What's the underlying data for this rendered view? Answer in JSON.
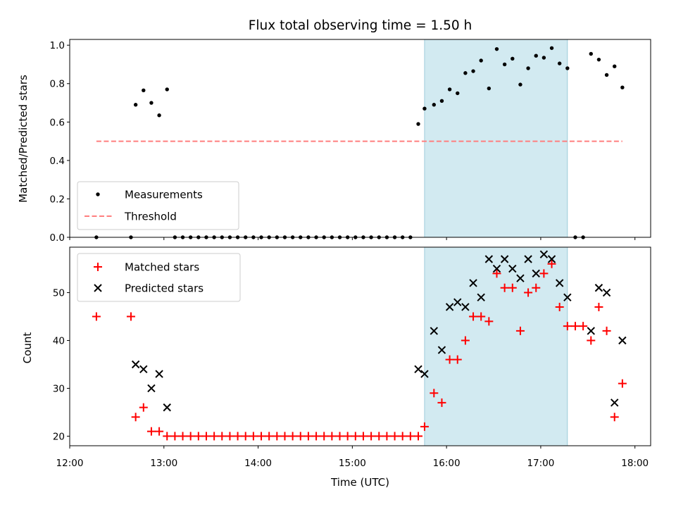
{
  "chart_data": [
    {
      "type": "scatter",
      "title": "Flux total observing time = 1.50 h",
      "xlabel": "",
      "ylabel": "Matched/Predicted stars",
      "xlim": [
        "12:00",
        "18:10"
      ],
      "ylim": [
        0,
        1.03
      ],
      "y_ticks": [
        0.0,
        0.2,
        0.4,
        0.6,
        0.8,
        1.0
      ],
      "y_tick_labels": [
        "0.0",
        "0.2",
        "0.4",
        "0.6",
        "0.8",
        "1.0"
      ],
      "x_ticks": [
        "12:00",
        "13:00",
        "14:00",
        "15:00",
        "16:00",
        "17:00",
        "18:00"
      ],
      "grid": false,
      "legend_position": "lower-left",
      "shaded_interval": {
        "start": "15:46",
        "end": "17:17",
        "color": "#add8e6"
      },
      "series": [
        {
          "name": "Measurements",
          "marker": "dot",
          "color": "#000000",
          "x": [
            "12:17",
            "12:39",
            "12:42",
            "12:47",
            "12:52",
            "12:57",
            "13:02",
            "13:07",
            "13:12",
            "13:17",
            "13:22",
            "13:27",
            "13:32",
            "13:37",
            "13:42",
            "13:47",
            "13:52",
            "13:57",
            "14:02",
            "14:07",
            "14:12",
            "14:17",
            "14:22",
            "14:27",
            "14:32",
            "14:37",
            "14:42",
            "14:47",
            "14:52",
            "14:57",
            "15:02",
            "15:07",
            "15:12",
            "15:17",
            "15:22",
            "15:27",
            "15:32",
            "15:37",
            "15:42",
            "15:46",
            "15:52",
            "15:57",
            "16:02",
            "16:07",
            "16:12",
            "16:17",
            "16:22",
            "16:27",
            "16:32",
            "16:37",
            "16:42",
            "16:47",
            "16:52",
            "16:57",
            "17:02",
            "17:07",
            "17:12",
            "17:17",
            "17:22",
            "17:27",
            "17:32",
            "17:37",
            "17:42",
            "17:47",
            "17:52"
          ],
          "y": [
            0.0,
            0.0,
            0.69,
            0.765,
            0.7,
            0.635,
            0.77,
            0.0,
            0.0,
            0.0,
            0.0,
            0.0,
            0.0,
            0.0,
            0.0,
            0.0,
            0.0,
            0.0,
            0.0,
            0.0,
            0.0,
            0.0,
            0.0,
            0.0,
            0.0,
            0.0,
            0.0,
            0.0,
            0.0,
            0.0,
            0.0,
            0.0,
            0.0,
            0.0,
            0.0,
            0.0,
            0.0,
            0.0,
            0.59,
            0.67,
            0.69,
            0.71,
            0.77,
            0.75,
            0.855,
            0.865,
            0.92,
            0.775,
            0.98,
            0.9,
            0.93,
            0.795,
            0.88,
            0.945,
            0.935,
            0.985,
            0.905,
            0.88,
            0.0,
            0.0,
            0.955,
            0.925,
            0.845,
            0.89,
            0.78
          ]
        },
        {
          "name": "Threshold",
          "marker": "dashed-line",
          "color": "#ff7f7f",
          "x": [
            "12:17",
            "17:52"
          ],
          "y": [
            0.5,
            0.5
          ]
        }
      ]
    },
    {
      "type": "scatter",
      "title": "",
      "xlabel": "Time (UTC)",
      "ylabel": "Count",
      "xlim": [
        "12:00",
        "18:10"
      ],
      "ylim": [
        18,
        59.5
      ],
      "y_ticks": [
        20,
        30,
        40,
        50
      ],
      "y_tick_labels": [
        "20",
        "30",
        "40",
        "50"
      ],
      "x_ticks": [
        "12:00",
        "13:00",
        "14:00",
        "15:00",
        "16:00",
        "17:00",
        "18:00"
      ],
      "x_tick_labels": [
        "12:00",
        "13:00",
        "14:00",
        "15:00",
        "16:00",
        "17:00",
        "18:00"
      ],
      "grid": false,
      "legend_position": "upper-left",
      "shaded_interval": {
        "start": "15:46",
        "end": "17:17",
        "color": "#add8e6"
      },
      "series": [
        {
          "name": "Matched stars",
          "marker": "plus",
          "color": "#ff0000",
          "x": [
            "12:17",
            "12:39",
            "12:42",
            "12:47",
            "12:52",
            "12:57",
            "13:02",
            "13:07",
            "13:12",
            "13:17",
            "13:22",
            "13:27",
            "13:32",
            "13:37",
            "13:42",
            "13:47",
            "13:52",
            "13:57",
            "14:02",
            "14:07",
            "14:12",
            "14:17",
            "14:22",
            "14:27",
            "14:32",
            "14:37",
            "14:42",
            "14:47",
            "14:52",
            "14:57",
            "15:02",
            "15:07",
            "15:12",
            "15:17",
            "15:22",
            "15:27",
            "15:32",
            "15:37",
            "15:42",
            "15:46",
            "15:52",
            "15:57",
            "16:02",
            "16:07",
            "16:12",
            "16:17",
            "16:22",
            "16:27",
            "16:32",
            "16:37",
            "16:42",
            "16:47",
            "16:52",
            "16:57",
            "17:02",
            "17:07",
            "17:12",
            "17:17",
            "17:22",
            "17:27",
            "17:32",
            "17:37",
            "17:42",
            "17:47",
            "17:52"
          ],
          "y": [
            45,
            45,
            24,
            26,
            21,
            21,
            20,
            20,
            20,
            20,
            20,
            20,
            20,
            20,
            20,
            20,
            20,
            20,
            20,
            20,
            20,
            20,
            20,
            20,
            20,
            20,
            20,
            20,
            20,
            20,
            20,
            20,
            20,
            20,
            20,
            20,
            20,
            20,
            20,
            22,
            29,
            27,
            36,
            36,
            40,
            45,
            45,
            44,
            54,
            51,
            51,
            42,
            50,
            51,
            54,
            56,
            47,
            43,
            43,
            43,
            40,
            47,
            42,
            24,
            31
          ]
        },
        {
          "name": "Predicted stars",
          "marker": "x",
          "color": "#000000",
          "x": [
            "12:42",
            "12:47",
            "12:52",
            "12:57",
            "13:02",
            "15:42",
            "15:46",
            "15:52",
            "15:57",
            "16:02",
            "16:07",
            "16:12",
            "16:17",
            "16:22",
            "16:27",
            "16:32",
            "16:37",
            "16:42",
            "16:47",
            "16:52",
            "16:57",
            "17:02",
            "17:07",
            "17:12",
            "17:17",
            "17:32",
            "17:37",
            "17:42",
            "17:47",
            "17:52"
          ],
          "y": [
            35,
            34,
            30,
            33,
            26,
            34,
            33,
            42,
            38,
            47,
            48,
            47,
            52,
            49,
            57,
            55,
            57,
            55,
            53,
            57,
            54,
            58,
            57,
            52,
            49,
            42,
            51,
            50,
            27,
            40
          ]
        }
      ]
    }
  ]
}
